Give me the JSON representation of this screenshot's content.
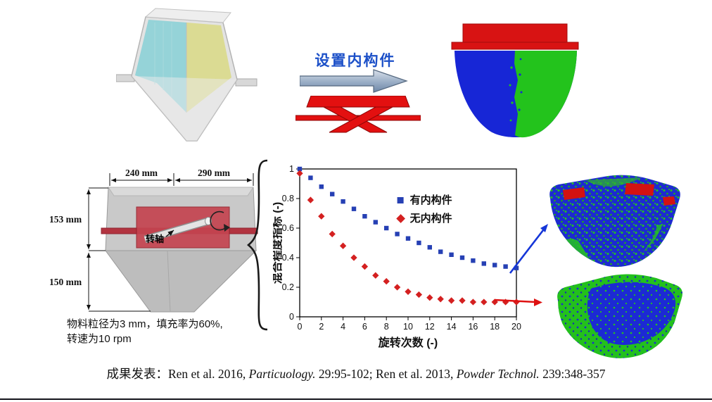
{
  "top": {
    "arrow_label": "设置内构件"
  },
  "mixer_diagram": {
    "width_left": "240 mm",
    "width_right": "290 mm",
    "height_upper": "153 mm",
    "height_lower": "150 mm",
    "shaft_label": "转轴",
    "params_line1": "物料粒径为3 mm，填充率为60%,",
    "params_line2": "转速为10 rpm"
  },
  "chart_data": {
    "type": "scatter",
    "title": "",
    "xlabel": "旋转次数 (-)",
    "ylabel": "混合程度指标 (-)",
    "xlim": [
      0,
      20
    ],
    "ylim": [
      0,
      1
    ],
    "xticks": [
      0,
      2,
      4,
      6,
      8,
      10,
      12,
      14,
      16,
      18,
      20
    ],
    "yticks": [
      0,
      0.2,
      0.4,
      0.6,
      0.8,
      1
    ],
    "grid": false,
    "legend_position": "inside top-right",
    "series": [
      {
        "name": "有内构件",
        "marker": "square",
        "color": "#2640b4",
        "x": [
          0,
          1,
          2,
          3,
          4,
          5,
          6,
          7,
          8,
          9,
          10,
          11,
          12,
          13,
          14,
          15,
          16,
          17,
          18,
          19,
          20
        ],
        "y": [
          1.0,
          0.94,
          0.88,
          0.83,
          0.78,
          0.73,
          0.68,
          0.64,
          0.6,
          0.56,
          0.53,
          0.5,
          0.47,
          0.44,
          0.42,
          0.4,
          0.38,
          0.36,
          0.35,
          0.34,
          0.33
        ]
      },
      {
        "name": "无内构件",
        "marker": "diamond",
        "color": "#d42020",
        "x": [
          0,
          1,
          2,
          3,
          4,
          5,
          6,
          7,
          8,
          9,
          10,
          11,
          12,
          13,
          14,
          15,
          16,
          17,
          18,
          19,
          20
        ],
        "y": [
          0.97,
          0.79,
          0.68,
          0.56,
          0.48,
          0.4,
          0.34,
          0.28,
          0.24,
          0.2,
          0.17,
          0.15,
          0.13,
          0.12,
          0.11,
          0.11,
          0.1,
          0.1,
          0.1,
          0.1,
          0.1
        ]
      }
    ]
  },
  "citation": {
    "parts": [
      {
        "text": "成果发表：Ren et al. 2016, ",
        "italic": false
      },
      {
        "text": "Particuology.",
        "italic": true
      },
      {
        "text": " 29:95-102; Ren et al. 2013, ",
        "italic": false
      },
      {
        "text": "Powder Technol.",
        "italic": true
      },
      {
        "text": " 239:348-357",
        "italic": false
      }
    ]
  },
  "colors": {
    "label_blue": "#1c50c8",
    "series_blue": "#2640b4",
    "series_red": "#d42020",
    "particle_blue": "#1d2bd0",
    "particle_green": "#23c31c",
    "internals_red": "#e01212"
  }
}
